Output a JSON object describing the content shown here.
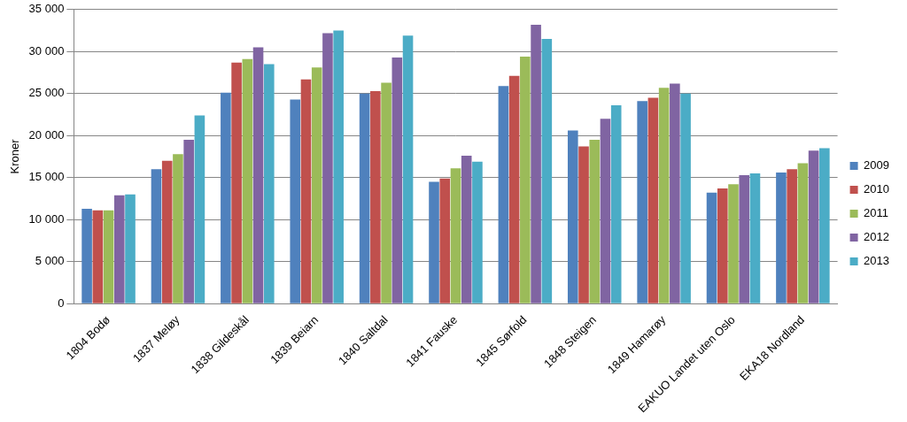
{
  "chart_data": {
    "type": "bar",
    "y_label": "Kroner",
    "categories": [
      "1804 Bodø",
      "1837 Meløy",
      "1838 Gildeskål",
      "1839 Beiarn",
      "1840 Saltdal",
      "1841 Fauske",
      "1845 Sørfold",
      "1848 Steigen",
      "1849 Hamarøy",
      "EAKUO Landet uten Oslo",
      "EKA18 Nordland"
    ],
    "series": [
      {
        "name": "2009",
        "color": "#4f81bd",
        "values": [
          11300,
          16000,
          25100,
          24300,
          25000,
          14500,
          25900,
          20600,
          24100,
          13200,
          15600
        ]
      },
      {
        "name": "2010",
        "color": "#c0504d",
        "values": [
          11100,
          17000,
          28700,
          26700,
          25300,
          14900,
          27100,
          18700,
          24500,
          13700,
          16000
        ]
      },
      {
        "name": "2011",
        "color": "#9bbb59",
        "values": [
          11100,
          17800,
          29100,
          28100,
          26300,
          16100,
          29400,
          19500,
          25700,
          14200,
          16700
        ]
      },
      {
        "name": "2012",
        "color": "#8064a2",
        "values": [
          12900,
          19500,
          30500,
          32200,
          29300,
          17600,
          33200,
          22000,
          26200,
          15300,
          18200
        ]
      },
      {
        "name": "2013",
        "color": "#4bacc6",
        "values": [
          13000,
          22400,
          28500,
          32500,
          31900,
          16900,
          31500,
          23600,
          25000,
          15500,
          18500
        ]
      }
    ],
    "ylim": [
      0,
      35000
    ],
    "yticks": [
      0,
      {
        "value": 5000,
        "label": "5 000"
      },
      {
        "value": 10000,
        "label": "10 000"
      },
      {
        "value": 15000,
        "label": "15 000"
      },
      {
        "value": 20000,
        "label": "20 000"
      },
      {
        "value": 25000,
        "label": "25 000"
      },
      {
        "value": 30000,
        "label": "30 000"
      },
      {
        "value": 35000,
        "label": "35 000"
      }
    ],
    "grid": true,
    "legend": "right"
  }
}
